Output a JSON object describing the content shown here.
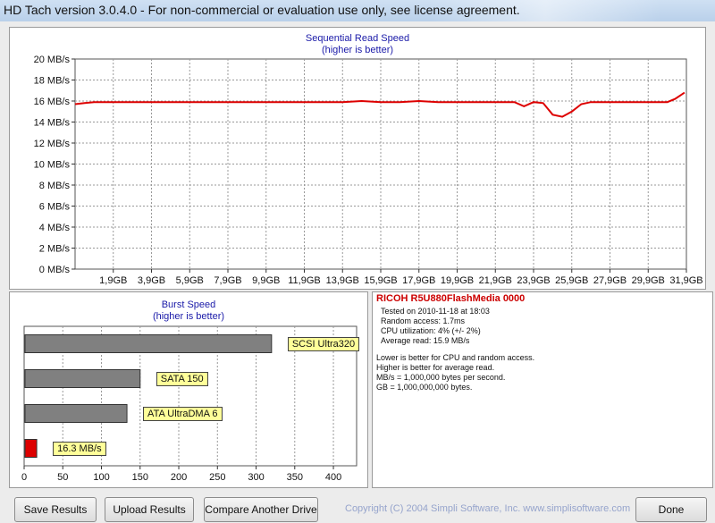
{
  "window": {
    "title": "HD Tach version 3.0.4.0  - For non-commercial or evaluation use only, see license agreement."
  },
  "colors": {
    "line": "#dd0000",
    "bar": "#808080",
    "bar_highlight": "#dd0000",
    "label_bg": "#ffff99",
    "title_blue": "#1a1aa8",
    "drive_red": "#cc0000"
  },
  "chart_data": [
    {
      "type": "line",
      "title": "Sequential Read Speed",
      "subtitle": "(higher is better)",
      "ylim": [
        0,
        20
      ],
      "y_ticks": [
        "0 MB/s",
        "2 MB/s",
        "4 MB/s",
        "6 MB/s",
        "8 MB/s",
        "10 MB/s",
        "12 MB/s",
        "14 MB/s",
        "16 MB/s",
        "18 MB/s",
        "20 MB/s"
      ],
      "xlim_gb": [
        0,
        32
      ],
      "x_ticks": [
        "1,9GB",
        "3,9GB",
        "5,9GB",
        "7,9GB",
        "9,9GB",
        "11,9GB",
        "13,9GB",
        "15,9GB",
        "17,9GB",
        "19,9GB",
        "21,9GB",
        "23,9GB",
        "25,9GB",
        "27,9GB",
        "29,9GB",
        "31,9GB"
      ],
      "grid": true,
      "series": [
        {
          "x": [
            0,
            0.5,
            1,
            2,
            3,
            4,
            5,
            6,
            7,
            8,
            9,
            10,
            11,
            12,
            13,
            14,
            15,
            16,
            17,
            18,
            19,
            20,
            21,
            22,
            23,
            23.5,
            24,
            24.5,
            25,
            25.5,
            26,
            26.5,
            27,
            28,
            29,
            30,
            31,
            31.4,
            31.9
          ],
          "y": [
            15.7,
            15.8,
            15.9,
            15.9,
            15.9,
            15.9,
            15.9,
            15.9,
            15.9,
            15.9,
            15.9,
            15.9,
            15.9,
            15.9,
            15.9,
            15.9,
            16.0,
            15.9,
            15.9,
            16.0,
            15.9,
            15.9,
            15.9,
            15.9,
            15.9,
            15.5,
            15.9,
            15.8,
            14.7,
            14.5,
            15.0,
            15.7,
            15.9,
            15.9,
            15.9,
            15.9,
            15.9,
            16.2,
            16.8
          ]
        }
      ]
    },
    {
      "type": "bar",
      "orientation": "horizontal",
      "title": "Burst Speed",
      "subtitle": "(higher is better)",
      "xlim": [
        0,
        430
      ],
      "x_ticks": [
        "0",
        "50",
        "100",
        "150",
        "200",
        "250",
        "300",
        "350",
        "400"
      ],
      "categories": [
        "SCSI Ultra320",
        "SATA 150",
        "ATA UltraDMA 6",
        "16.3 MB/s"
      ],
      "values": [
        320,
        150,
        133,
        16.3
      ],
      "highlight_index": 3,
      "grid": true
    }
  ],
  "info": {
    "drive": "RICOH R5U880FlashMedia 0000",
    "lines": [
      "Tested on 2010-11-18 at 18:03",
      "Random access: 1.7ms",
      "CPU utilization: 4% (+/- 2%)",
      "Average read: 15.9 MB/s"
    ],
    "notes": [
      "Lower is better for CPU and random access.",
      "Higher is better for average read.",
      "MB/s = 1,000,000 bytes per second.",
      "GB = 1,000,000,000 bytes."
    ]
  },
  "buttons": {
    "save": "Save Results",
    "upload": "Upload Results",
    "compare": "Compare Another Drive",
    "done": "Done"
  },
  "copyright": "Copyright (C) 2004 Simpli Software, Inc. www.simplisoftware.com"
}
